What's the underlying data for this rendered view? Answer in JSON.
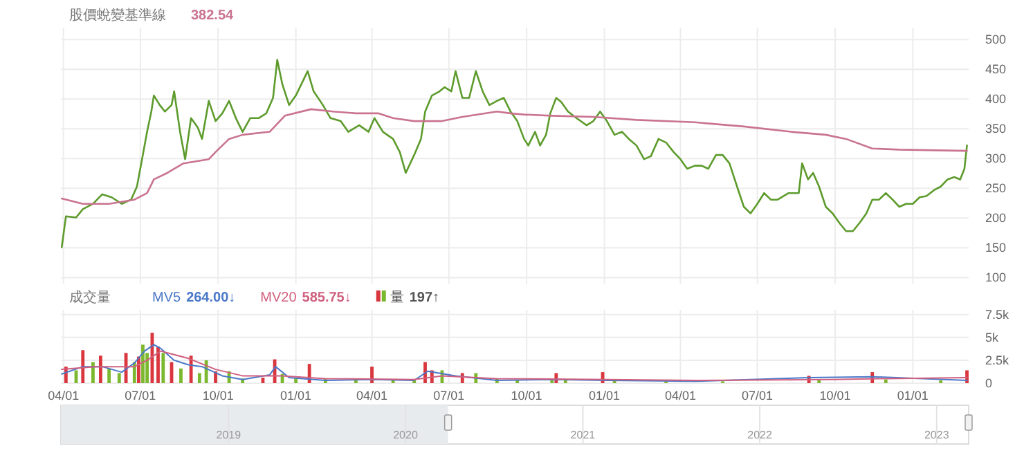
{
  "chart_data": [
    {
      "type": "line",
      "legend": "top left",
      "grid": true,
      "tick_labels": "y",
      "annotations": [
        "382.54"
      ],
      "xlim": [
        "2020-03-29",
        "2023-03-08"
      ],
      "xticks": [
        {
          "value": "2020-04-01",
          "label": null
        },
        {
          "value": "2020-07-01",
          "label": null
        },
        {
          "value": "2020-10-01",
          "label": null
        },
        {
          "value": "2021-01-01",
          "label": null
        },
        {
          "value": "2021-04-01",
          "label": null
        },
        {
          "value": "2021-07-01",
          "label": null
        },
        {
          "value": "2021-10-01",
          "label": null
        },
        {
          "value": "2022-01-01",
          "label": null
        },
        {
          "value": "2022-04-01",
          "label": null
        },
        {
          "value": "2022-07-01",
          "label": null
        },
        {
          "value": "2022-10-01",
          "label": null
        },
        {
          "value": "2023-01-01",
          "label": null
        }
      ],
      "ylim": [
        90,
        520
      ],
      "yticks": [
        100,
        150,
        200,
        250,
        300,
        350,
        400,
        450,
        500
      ],
      "series": [
        {
          "color": "#5d9b2c",
          "x": [
            "2020-03-30",
            "2020-04-04",
            "2020-04-16",
            "2020-04-24",
            "2020-05-06",
            "2020-05-17",
            "2020-05-28",
            "2020-06-09",
            "2020-06-20",
            "2020-06-27",
            "2020-07-03",
            "2020-07-09",
            "2020-07-14",
            "2020-07-17",
            "2020-07-24",
            "2020-07-30",
            "2020-08-07",
            "2020-08-10",
            "2020-08-17",
            "2020-08-23",
            "2020-08-30",
            "2020-09-07",
            "2020-09-12",
            "2020-09-20",
            "2020-09-28",
            "2020-10-06",
            "2020-10-14",
            "2020-10-22",
            "2020-10-30",
            "2020-11-08",
            "2020-11-18",
            "2020-11-27",
            "2020-12-05",
            "2020-12-10",
            "2020-12-16",
            "2020-12-24",
            "2021-01-01",
            "2021-01-15",
            "2021-01-22",
            "2021-02-02",
            "2021-02-11",
            "2021-02-23",
            "2021-03-04",
            "2021-03-17",
            "2021-03-28",
            "2021-04-04",
            "2021-04-14",
            "2021-04-26",
            "2021-05-04",
            "2021-05-11",
            "2021-05-21",
            "2021-05-29",
            "2021-06-03",
            "2021-06-11",
            "2021-06-20",
            "2021-06-26",
            "2021-07-04",
            "2021-07-09",
            "2021-07-17",
            "2021-07-25",
            "2021-08-02",
            "2021-08-10",
            "2021-08-18",
            "2021-08-27",
            "2021-09-04",
            "2021-09-12",
            "2021-09-20",
            "2021-09-28",
            "2021-10-03",
            "2021-10-11",
            "2021-10-17",
            "2021-10-24",
            "2021-10-29",
            "2021-11-05",
            "2021-11-11",
            "2021-11-19",
            "2021-11-29",
            "2021-12-11",
            "2021-12-19",
            "2021-12-27",
            "2022-01-04",
            "2022-01-13",
            "2022-01-22",
            "2022-01-30",
            "2022-02-08",
            "2022-02-17",
            "2022-02-25",
            "2022-03-06",
            "2022-03-15",
            "2022-03-24",
            "2022-04-01",
            "2022-04-09",
            "2022-04-18",
            "2022-04-26",
            "2022-05-04",
            "2022-05-13",
            "2022-05-21",
            "2022-05-29",
            "2022-06-07",
            "2022-06-15",
            "2022-06-23",
            "2022-07-01",
            "2022-07-09",
            "2022-07-17",
            "2022-07-25",
            "2022-08-07",
            "2022-08-19",
            "2022-08-23",
            "2022-08-30",
            "2022-09-05",
            "2022-09-12",
            "2022-09-20",
            "2022-09-28",
            "2022-10-06",
            "2022-10-14",
            "2022-10-22",
            "2022-10-30",
            "2022-11-07",
            "2022-11-14",
            "2022-11-22",
            "2022-11-30",
            "2022-12-08",
            "2022-12-16",
            "2022-12-24",
            "2023-01-01",
            "2023-01-09",
            "2023-01-17",
            "2023-01-26",
            "2023-02-03",
            "2023-02-11",
            "2023-02-19",
            "2023-02-26",
            "2023-03-03",
            "2023-03-06"
          ],
          "values": [
            151,
            203,
            201,
            215,
            224,
            240,
            235,
            224,
            231,
            253,
            299,
            345,
            379,
            406,
            390,
            379,
            390,
            413,
            345,
            299,
            368,
            352,
            333,
            397,
            363,
            376,
            397,
            368,
            345,
            368,
            368,
            376,
            402,
            466,
            425,
            390,
            406,
            447,
            413,
            390,
            368,
            363,
            345,
            356,
            345,
            368,
            345,
            333,
            311,
            276,
            306,
            333,
            379,
            406,
            413,
            420,
            413,
            447,
            402,
            402,
            447,
            413,
            390,
            397,
            402,
            379,
            363,
            333,
            322,
            345,
            322,
            340,
            376,
            402,
            395,
            379,
            368,
            356,
            363,
            379,
            363,
            340,
            345,
            333,
            322,
            299,
            304,
            333,
            327,
            311,
            299,
            283,
            288,
            288,
            283,
            306,
            306,
            292,
            253,
            219,
            208,
            224,
            242,
            231,
            231,
            242,
            242,
            292,
            265,
            276,
            253,
            219,
            208,
            192,
            178,
            178,
            192,
            208,
            231,
            231,
            242,
            231,
            219,
            224,
            224,
            235,
            237,
            247,
            253,
            265,
            269,
            265,
            283,
            322
          ]
        },
        {
          "name": "股價蛻變基準線",
          "color": "#c9738f",
          "x": [
            "2020-03-30",
            "2020-04-24",
            "2020-05-25",
            "2020-06-24",
            "2020-07-09",
            "2020-07-17",
            "2020-08-02",
            "2020-08-21",
            "2020-09-20",
            "2020-09-28",
            "2020-10-14",
            "2020-10-30",
            "2020-12-01",
            "2020-12-19",
            "2021-01-19",
            "2021-02-14",
            "2021-03-13",
            "2021-04-09",
            "2021-04-26",
            "2021-05-21",
            "2021-06-23",
            "2021-07-17",
            "2021-08-27",
            "2021-09-12",
            "2021-09-28",
            "2021-10-31",
            "2021-12-19",
            "2022-02-08",
            "2022-04-18",
            "2022-06-15",
            "2022-08-10",
            "2022-09-20",
            "2022-10-14",
            "2022-11-14",
            "2022-12-16",
            "2023-03-06"
          ],
          "values": [
            233,
            224,
            224,
            231,
            242,
            265,
            276,
            292,
            299,
            311,
            333,
            340,
            345,
            372,
            383,
            379,
            376,
            376,
            368,
            363,
            363,
            370,
            379,
            376,
            374,
            372,
            370,
            365,
            361,
            354,
            345,
            340,
            333,
            317,
            315,
            313
          ]
        }
      ]
    },
    {
      "type": "bar",
      "title": "成交量",
      "x2lim": [
        "2018-01-20",
        "2023-03-08"
      ],
      "x2ticks": [
        "2019",
        "2020",
        "2021",
        "2022",
        "2023"
      ],
      "legend": "top left",
      "grid": true,
      "annotations": [
        "264.00↓",
        "585.75↓",
        "197↑"
      ],
      "xlim": [
        "2020-03-29",
        "2023-03-08"
      ],
      "xticks": [
        {
          "value": "2020-04-01",
          "label": "04/01"
        },
        {
          "value": "2020-07-01",
          "label": "07/01"
        },
        {
          "value": "2020-10-01",
          "label": "10/01"
        },
        {
          "value": "2021-01-01",
          "label": "01/01"
        },
        {
          "value": "2021-04-01",
          "label": "04/01"
        },
        {
          "value": "2021-07-01",
          "label": "07/01"
        },
        {
          "value": "2021-10-01",
          "label": "10/01"
        },
        {
          "value": "2022-01-01",
          "label": "01/01"
        },
        {
          "value": "2022-04-01",
          "label": "04/01"
        },
        {
          "value": "2022-07-01",
          "label": "07/01"
        },
        {
          "value": "2022-10-01",
          "label": "10/01"
        },
        {
          "value": "2023-01-01",
          "label": "01/01"
        }
      ],
      "ylim": [
        0,
        8000
      ],
      "yticks": [
        0,
        {
          "value": 2500,
          "label": "2.5k"
        },
        {
          "value": 5000,
          "label": "5k"
        },
        {
          "value": 7500,
          "label": "7.5k"
        }
      ],
      "series": [
        {
          "name": "MV5",
          "type": "line",
          "color": "#4a78c8",
          "x": [
            "2020-03-30",
            "2020-04-24",
            "2020-05-17",
            "2020-06-09",
            "2020-06-24",
            "2020-07-06",
            "2020-07-17",
            "2020-07-25",
            "2020-08-10",
            "2020-08-27",
            "2020-09-12",
            "2020-10-06",
            "2020-10-30",
            "2020-12-01",
            "2020-12-08",
            "2020-12-24",
            "2021-02-05",
            "2021-04-01",
            "2021-05-21",
            "2021-06-06",
            "2021-07-09",
            "2021-08-27",
            "2021-10-31",
            "2022-01-04",
            "2022-04-18",
            "2022-08-31",
            "2022-11-14",
            "2023-03-06"
          ],
          "values": [
            1000,
            1800,
            1800,
            1200,
            2200,
            3500,
            4200,
            3800,
            2500,
            2000,
            1800,
            800,
            400,
            900,
            1800,
            600,
            300,
            400,
            300,
            1300,
            800,
            300,
            400,
            300,
            200,
            600,
            700,
            300
          ]
        },
        {
          "name": "MV20",
          "type": "line",
          "color": "#d0607f",
          "x": [
            "2020-03-30",
            "2020-05-09",
            "2020-06-24",
            "2020-07-09",
            "2020-07-25",
            "2020-08-27",
            "2020-09-28",
            "2020-10-30",
            "2020-12-16",
            "2021-02-05",
            "2021-05-21",
            "2021-06-23",
            "2021-08-27",
            "2022-01-04",
            "2022-04-18",
            "2022-09-28",
            "2022-11-30",
            "2023-03-06"
          ],
          "values": [
            1500,
            1800,
            1800,
            2500,
            3500,
            2700,
            1500,
            800,
            800,
            500,
            400,
            800,
            500,
            400,
            300,
            400,
            500,
            600
          ]
        },
        {
          "name": "量",
          "type": "bar",
          "x": [
            "2020-04-04",
            "2020-04-16",
            "2020-04-24",
            "2020-05-06",
            "2020-05-15",
            "2020-05-25",
            "2020-06-06",
            "2020-06-14",
            "2020-06-24",
            "2020-06-29",
            "2020-07-04",
            "2020-07-09",
            "2020-07-15",
            "2020-07-22",
            "2020-07-28",
            "2020-08-07",
            "2020-08-18",
            "2020-08-30",
            "2020-09-09",
            "2020-09-17",
            "2020-09-28",
            "2020-10-14",
            "2020-10-30",
            "2020-11-23",
            "2020-12-07",
            "2020-12-16",
            "2021-01-01",
            "2021-01-17",
            "2021-02-05",
            "2021-03-13",
            "2021-04-01",
            "2021-04-26",
            "2021-05-21",
            "2021-06-03",
            "2021-06-11",
            "2021-06-23",
            "2021-07-17",
            "2021-08-02",
            "2021-08-27",
            "2021-09-20",
            "2021-10-31",
            "2021-11-05",
            "2021-11-16",
            "2021-12-30",
            "2022-01-13",
            "2022-03-15",
            "2022-05-21",
            "2022-08-31",
            "2022-09-12",
            "2022-11-14",
            "2022-11-30",
            "2023-02-03",
            "2023-03-06"
          ],
          "values": [
            1800,
            1400,
            3600,
            2300,
            3000,
            1600,
            1100,
            3300,
            2300,
            2900,
            4200,
            3300,
            5500,
            4000,
            3300,
            2300,
            1600,
            3000,
            1100,
            2500,
            1300,
            1300,
            500,
            600,
            2600,
            1000,
            500,
            2100,
            500,
            300,
            1800,
            300,
            300,
            2300,
            1400,
            1400,
            1100,
            1100,
            500,
            300,
            300,
            1100,
            400,
            1200,
            300,
            200,
            200,
            800,
            400,
            1200,
            400,
            300,
            1400
          ],
          "colors": [
            "#d9363e",
            "#7cb82f",
            "#d9363e",
            "#7cb82f",
            "#d9363e",
            "#7cb82f",
            "#7cb82f",
            "#d9363e",
            "#7cb82f",
            "#d9363e",
            "#7cb82f",
            "#7cb82f",
            "#d9363e",
            "#d9363e",
            "#7cb82f",
            "#d9363e",
            "#7cb82f",
            "#d9363e",
            "#7cb82f",
            "#7cb82f",
            "#d9363e",
            "#7cb82f",
            "#7cb82f",
            "#d9363e",
            "#d9363e",
            "#7cb82f",
            "#7cb82f",
            "#d9363e",
            "#7cb82f",
            "#7cb82f",
            "#d9363e",
            "#7cb82f",
            "#7cb82f",
            "#d9363e",
            "#d9363e",
            "#7cb82f",
            "#d9363e",
            "#7cb82f",
            "#7cb82f",
            "#7cb82f",
            "#7cb82f",
            "#d9363e",
            "#7cb82f",
            "#d9363e",
            "#7cb82f",
            "#7cb82f",
            "#7cb82f",
            "#d9363e",
            "#7cb82f",
            "#d9363e",
            "#7cb82f",
            "#7cb82f",
            "#d9363e"
          ]
        }
      ]
    }
  ]
}
